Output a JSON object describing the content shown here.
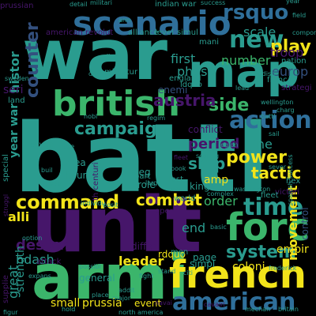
{
  "palette": {
    "teal": "#2a9c8f",
    "green": "#3bb56b",
    "yellow": "#f2e41a",
    "purple": "#46166a",
    "navy": "#33507e",
    "blue": "#2f6f9a",
    "lime": "#8ed24a"
  },
  "words": [
    {
      "text": "war",
      "color": "teal"
    },
    {
      "text": "battl",
      "color": "teal"
    },
    {
      "text": "unit",
      "color": "purple"
    },
    {
      "text": "armi",
      "color": "green"
    },
    {
      "text": "scenario",
      "color": "blue"
    },
    {
      "text": "map",
      "color": "teal"
    },
    {
      "text": "british",
      "color": "green"
    },
    {
      "text": "french",
      "color": "yellow"
    },
    {
      "text": "american",
      "color": "blue"
    },
    {
      "text": "forc",
      "color": "green"
    },
    {
      "text": "action",
      "color": "blue"
    },
    {
      "text": "new",
      "color": "teal"
    },
    {
      "text": "time",
      "color": "teal"
    },
    {
      "text": "campaign",
      "color": "teal"
    },
    {
      "text": "command",
      "color": "yellow"
    },
    {
      "text": "combat",
      "color": "yellow"
    },
    {
      "text": "counter",
      "color": "navy"
    },
    {
      "text": "rsquo",
      "color": "blue"
    },
    {
      "text": "play",
      "color": "yellow"
    },
    {
      "text": "side",
      "color": "green"
    },
    {
      "text": "power",
      "color": "yellow"
    },
    {
      "text": "system",
      "color": "teal"
    },
    {
      "text": "tactic",
      "color": "yellow"
    },
    {
      "text": "movement",
      "color": "yellow"
    },
    {
      "text": "ship",
      "color": "teal"
    },
    {
      "text": "austria",
      "color": "purple"
    },
    {
      "text": "histor",
      "color": "teal"
    },
    {
      "text": "year war",
      "color": "teal"
    },
    {
      "text": "period",
      "color": "purple"
    },
    {
      "text": "first",
      "color": "teal"
    },
    {
      "text": "phase",
      "color": "teal"
    },
    {
      "text": "number",
      "color": "green"
    },
    {
      "text": "europ",
      "color": "navy"
    },
    {
      "text": "troop",
      "color": "purple"
    },
    {
      "text": "scale",
      "color": "teal"
    },
    {
      "text": "line",
      "color": "teal"
    },
    {
      "text": "order",
      "color": "green"
    },
    {
      "text": "end",
      "color": "teal"
    },
    {
      "text": "design",
      "color": "purple"
    },
    {
      "text": "leader",
      "color": "yellow"
    },
    {
      "text": "ndash",
      "color": "teal"
    },
    {
      "text": "alli",
      "color": "yellow"
    },
    {
      "text": "great",
      "color": "teal"
    },
    {
      "text": "strength",
      "color": "teal"
    },
    {
      "text": "small",
      "color": "yellow"
    },
    {
      "text": "prussia",
      "color": "yellow"
    },
    {
      "text": "event",
      "color": "yellow"
    },
    {
      "text": "empir",
      "color": "yellow"
    },
    {
      "text": "coloni",
      "color": "yellow"
    },
    {
      "text": "amp",
      "color": "yellow"
    },
    {
      "text": "seri",
      "color": "purple"
    },
    {
      "text": "enemi",
      "color": "navy"
    },
    {
      "text": "sieg",
      "color": "teal"
    },
    {
      "text": "role",
      "color": "teal"
    },
    {
      "text": "king",
      "color": "teal"
    },
    {
      "text": "control",
      "color": "navy"
    },
    {
      "text": "simpl",
      "color": "teal"
    },
    {
      "text": "page",
      "color": "teal"
    },
    {
      "text": "rdquo",
      "color": "yellow"
    },
    {
      "text": "differ",
      "color": "purple"
    },
    {
      "text": "general",
      "color": "teal"
    },
    {
      "text": "area",
      "color": "teal"
    },
    {
      "text": "conflict",
      "color": "purple"
    },
    {
      "text": "hour",
      "color": "teal"
    },
    {
      "text": "part",
      "color": "teal"
    },
    {
      "text": "last",
      "color": "teal"
    },
    {
      "text": "men",
      "color": "teal"
    },
    {
      "text": "oper",
      "color": "purple"
    },
    {
      "text": "world",
      "color": "teal"
    },
    {
      "text": "nation",
      "color": "teal"
    },
    {
      "text": "franc",
      "color": "teal"
    },
    {
      "text": "england",
      "color": "teal"
    },
    {
      "text": "miniatur",
      "color": "teal"
    },
    {
      "text": "level",
      "color": "teal"
    },
    {
      "text": "simul",
      "color": "teal"
    },
    {
      "text": "alliance",
      "color": "teal"
    },
    {
      "text": "american revolut",
      "color": "purple"
    },
    {
      "text": "militari",
      "color": "teal"
    },
    {
      "text": "indian war",
      "color": "teal"
    },
    {
      "text": "prussian",
      "color": "purple"
    },
    {
      "text": "detail",
      "color": "teal"
    },
    {
      "text": "success",
      "color": "teal"
    },
    {
      "text": "field",
      "color": "teal"
    },
    {
      "text": "washington",
      "color": "teal"
    },
    {
      "text": "spanish success",
      "color": "teal"
    },
    {
      "text": "victori",
      "color": "purple"
    },
    {
      "text": "frederick",
      "color": "teal"
    },
    {
      "text": "land",
      "color": "teal"
    },
    {
      "text": "special",
      "color": "teal"
    },
    {
      "text": "supplie",
      "color": "purple"
    },
    {
      "text": "attack",
      "color": "purple"
    },
    {
      "text": "seven",
      "color": "teal"
    },
    {
      "text": "hex",
      "color": "teal"
    },
    {
      "text": "fleet",
      "color": "teal"
    },
    {
      "text": "mani",
      "color": "teal"
    },
    {
      "text": "compon",
      "color": "teal"
    },
    {
      "text": "citi",
      "color": "teal"
    },
    {
      "text": "place",
      "color": "teal"
    },
    {
      "text": "major",
      "color": "teal"
    },
    {
      "text": "navai",
      "color": "purple"
    },
    {
      "text": "cavalri",
      "color": "purple"
    },
    {
      "text": "mechan",
      "color": "teal"
    },
    {
      "text": "fight",
      "color": "teal"
    },
    {
      "text": "stand",
      "color": "teal"
    },
    {
      "text": "complex",
      "color": "teal"
    },
    {
      "text": "book",
      "color": "teal"
    },
    {
      "text": "sever",
      "color": "teal"
    },
    {
      "text": "addit",
      "color": "teal"
    },
    {
      "text": "lose",
      "color": "teal"
    },
    {
      "text": "lead",
      "color": "teal"
    },
    {
      "text": "wellington",
      "color": "teal"
    },
    {
      "text": "sweden",
      "color": "teal"
    },
    {
      "text": "swedish",
      "color": "teal"
    },
    {
      "text": "dice",
      "color": "teal"
    },
    {
      "text": "day",
      "color": "teal"
    },
    {
      "text": "nobl",
      "color": "teal"
    },
    {
      "text": "ldquo",
      "color": "teal"
    },
    {
      "text": "sail",
      "color": "teal"
    },
    {
      "text": "strategi",
      "color": "purple"
    },
    {
      "text": "charg",
      "color": "teal"
    },
    {
      "text": "regim",
      "color": "teal"
    },
    {
      "text": "region",
      "color": "teal"
    },
    {
      "text": "struggl",
      "color": "purple"
    },
    {
      "text": "buil",
      "color": "teal"
    },
    {
      "text": "posit",
      "color": "teal"
    },
    {
      "text": "possibl",
      "color": "teal"
    },
    {
      "text": "indivídu",
      "color": "teal"
    },
    {
      "text": "expans",
      "color": "teal"
    },
    {
      "text": "option",
      "color": "teal"
    },
    {
      "text": "figur",
      "color": "teal"
    },
    {
      "text": "hold",
      "color": "teal"
    },
    {
      "text": "lack",
      "color": "teal"
    },
    {
      "text": "th centuri",
      "color": "purple"
    },
    {
      "text": "arm",
      "color": "teal"
    },
    {
      "text": "north america",
      "color": "teal"
    },
    {
      "text": "larg",
      "color": "teal"
    },
    {
      "text": "hand",
      "color": "teal"
    },
    {
      "text": "year",
      "color": "teal"
    },
    {
      "text": "scoring",
      "color": "teal"
    },
    {
      "text": "basic",
      "color": "teal"
    },
    {
      "text": "britain",
      "color": "teal"
    },
    {
      "text": "fleet",
      "color": "purple"
    },
    {
      "text": "battl",
      "color": "teal"
    }
  ]
}
